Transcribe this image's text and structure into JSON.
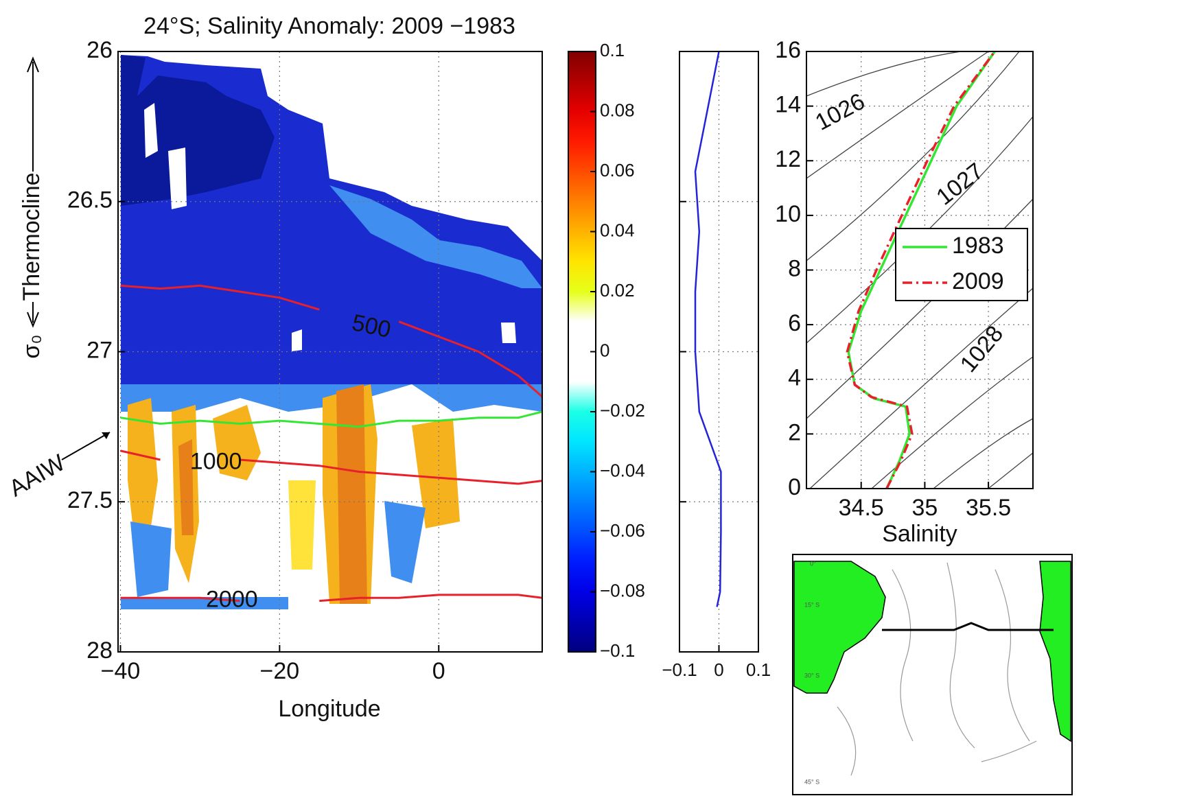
{
  "chart_data": [
    {
      "type": "contour-section",
      "title": "24°S; Salinity Anomaly: 2009 −1983",
      "x_label": "Longitude",
      "y_label": "σ₀",
      "annotations": [
        "Thermocline",
        "AAIW"
      ],
      "xlim": [
        -40.3,
        13
      ],
      "xticks": [
        {
          "value": -40,
          "label": "−40"
        },
        {
          "value": -20,
          "label": "−20"
        },
        0
      ],
      "ylim": [
        28,
        26
      ],
      "yticks": [
        26,
        26.5,
        27,
        27.5,
        28
      ],
      "grid": true,
      "x": [
        -40,
        -35,
        -30,
        -25,
        -20,
        -15,
        -10,
        -5,
        0,
        5,
        10,
        13
      ],
      "series": [
        {
          "name": "500",
          "color": "#e8202a",
          "values": [
            26.78,
            26.79,
            26.78,
            26.8,
            26.82,
            26.86,
            null,
            26.9,
            26.95,
            27.0,
            27.08,
            27.15
          ]
        },
        {
          "color": "#33e633",
          "values": [
            27.22,
            27.24,
            27.23,
            27.24,
            27.23,
            27.24,
            27.25,
            27.23,
            27.23,
            27.22,
            27.22,
            27.2
          ]
        },
        {
          "name": "1000",
          "color": "#e8202a",
          "values": [
            27.33,
            27.36,
            null,
            27.36,
            27.37,
            27.38,
            27.4,
            27.41,
            27.42,
            27.43,
            27.44,
            27.43
          ]
        },
        {
          "name": "2000",
          "color": "#e8202a",
          "values": [
            27.82,
            27.82,
            27.82,
            27.83,
            null,
            27.83,
            27.82,
            27.82,
            27.81,
            27.81,
            27.81,
            27.82
          ]
        }
      ]
    },
    {
      "type": "colorbar",
      "colormap": "jet",
      "ylim": [
        -0.1,
        0.1
      ],
      "yticks": [
        {
          "value": -0.1,
          "label": "−0.1"
        },
        {
          "value": -0.08,
          "label": "−0.08"
        },
        {
          "value": -0.06,
          "label": "−0.06"
        },
        {
          "value": -0.04,
          "label": "−0.04"
        },
        {
          "value": -0.02,
          "label": "−0.02"
        },
        0,
        0.02,
        0.04,
        0.06,
        0.08,
        0.1
      ]
    },
    {
      "type": "profile",
      "color": "#2323d8",
      "xlim": [
        -0.1,
        0.1
      ],
      "xticks": [
        {
          "value": -0.1,
          "label": "−0.1"
        },
        0,
        0.1
      ],
      "ylim": [
        28,
        26
      ],
      "yticks": [
        26,
        26.5,
        27,
        27.5,
        28
      ],
      "grid": true,
      "y": [
        26,
        26.2,
        26.4,
        26.6,
        26.8,
        27,
        27.2,
        27.4,
        27.6,
        27.8,
        27.85
      ],
      "values": [
        0,
        -0.03,
        -0.06,
        -0.05,
        -0.06,
        -0.06,
        -0.05,
        0.005,
        0.005,
        0.003,
        -0.005
      ]
    },
    {
      "type": "line",
      "x_label": "Salinity",
      "annotations": [
        "1026",
        "1027",
        "1028"
      ],
      "xlim": [
        34.07,
        35.85
      ],
      "xticks": [
        34.5,
        35,
        35.5
      ],
      "ylim": [
        0,
        16
      ],
      "yticks": [
        0,
        2,
        4,
        6,
        8,
        10,
        12,
        14,
        16
      ],
      "grid": true,
      "legend": "right",
      "series": [
        {
          "name": "1983",
          "color": "#33e633",
          "dash": false,
          "x": [
            34.7,
            34.8,
            34.88,
            34.85,
            34.6,
            34.45,
            34.4,
            34.5,
            34.65,
            34.85,
            35.05,
            35.25,
            35.55
          ],
          "values": [
            0,
            1,
            2,
            3,
            3.3,
            3.8,
            5,
            6.5,
            8,
            10,
            12,
            14,
            16
          ]
        },
        {
          "name": "2009",
          "color": "#e8202a",
          "dash": true,
          "x": [
            34.7,
            34.81,
            34.9,
            34.86,
            34.58,
            34.45,
            34.39,
            34.48,
            34.62,
            34.82,
            35.02,
            35.23,
            35.55
          ],
          "values": [
            0,
            1,
            2,
            3,
            3.35,
            3.8,
            5,
            6.5,
            8,
            10,
            12,
            14,
            16
          ]
        }
      ]
    }
  ],
  "map": {
    "labels": [
      "0°",
      "15° S",
      "30° S",
      "45° S"
    ]
  }
}
